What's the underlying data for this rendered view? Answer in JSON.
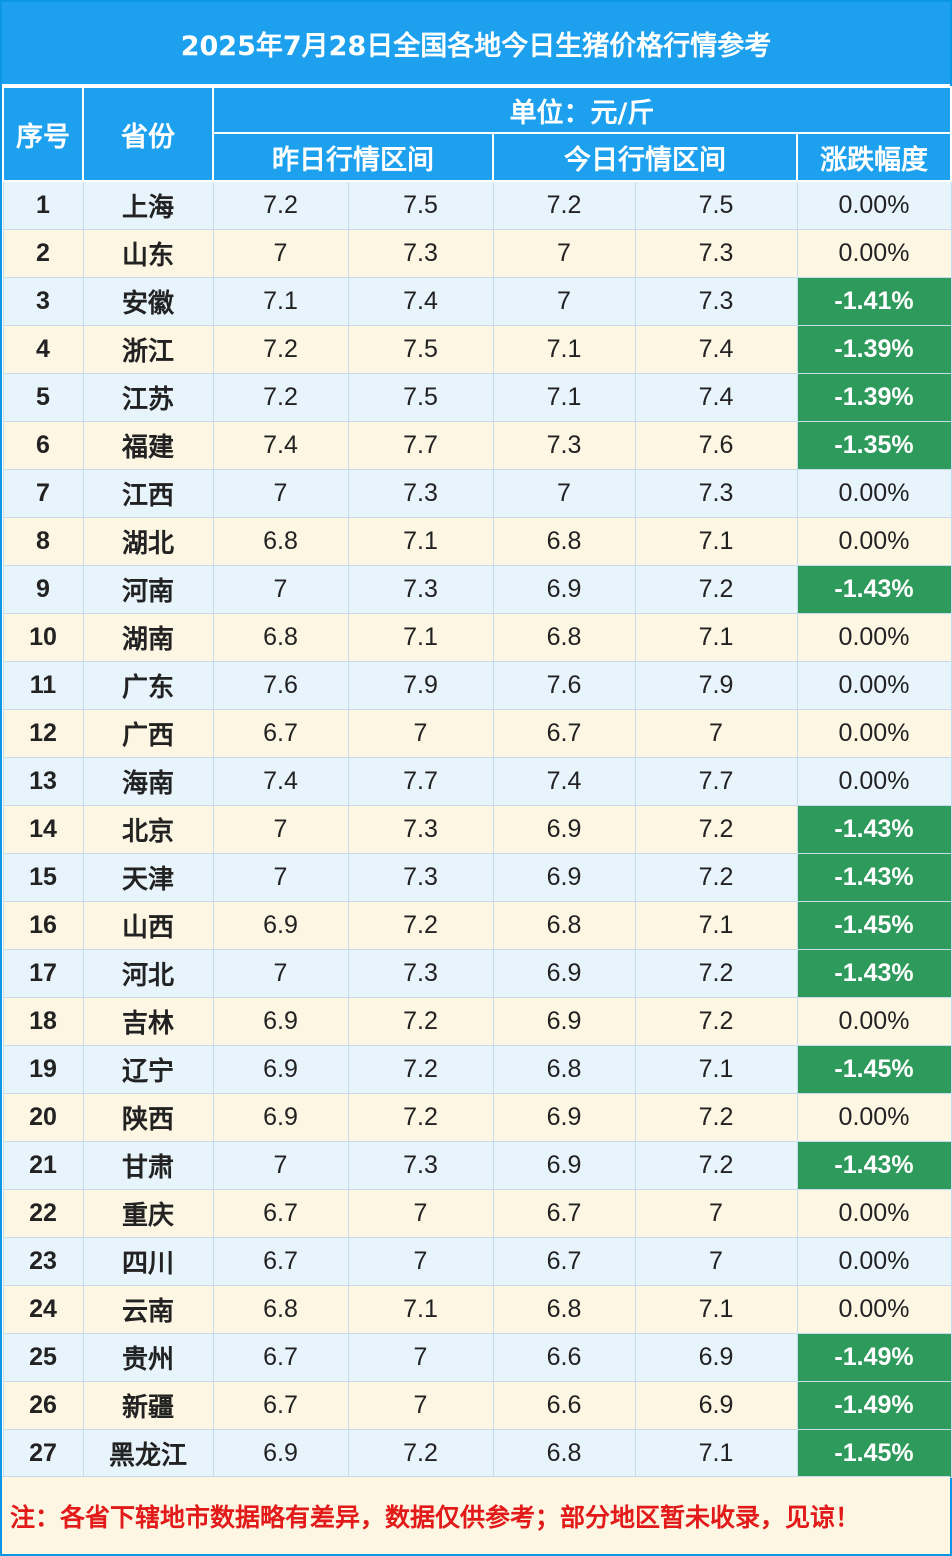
{
  "title": "2025年7月28日全国各地今日生猪价格行情参考",
  "header": {
    "seq": "序号",
    "province": "省份",
    "unit": "单位：元/斤",
    "yesterday": "昨日行情区间",
    "today": "今日行情区间",
    "change": "涨跌幅度"
  },
  "rows": [
    {
      "seq": "1",
      "province": "上海",
      "y_low": "7.2",
      "y_high": "7.5",
      "t_low": "7.2",
      "t_high": "7.5",
      "change": "0.00%"
    },
    {
      "seq": "2",
      "province": "山东",
      "y_low": "7",
      "y_high": "7.3",
      "t_low": "7",
      "t_high": "7.3",
      "change": "0.00%"
    },
    {
      "seq": "3",
      "province": "安徽",
      "y_low": "7.1",
      "y_high": "7.4",
      "t_low": "7",
      "t_high": "7.3",
      "change": "-1.41%"
    },
    {
      "seq": "4",
      "province": "浙江",
      "y_low": "7.2",
      "y_high": "7.5",
      "t_low": "7.1",
      "t_high": "7.4",
      "change": "-1.39%"
    },
    {
      "seq": "5",
      "province": "江苏",
      "y_low": "7.2",
      "y_high": "7.5",
      "t_low": "7.1",
      "t_high": "7.4",
      "change": "-1.39%"
    },
    {
      "seq": "6",
      "province": "福建",
      "y_low": "7.4",
      "y_high": "7.7",
      "t_low": "7.3",
      "t_high": "7.6",
      "change": "-1.35%"
    },
    {
      "seq": "7",
      "province": "江西",
      "y_low": "7",
      "y_high": "7.3",
      "t_low": "7",
      "t_high": "7.3",
      "change": "0.00%"
    },
    {
      "seq": "8",
      "province": "湖北",
      "y_low": "6.8",
      "y_high": "7.1",
      "t_low": "6.8",
      "t_high": "7.1",
      "change": "0.00%"
    },
    {
      "seq": "9",
      "province": "河南",
      "y_low": "7",
      "y_high": "7.3",
      "t_low": "6.9",
      "t_high": "7.2",
      "change": "-1.43%"
    },
    {
      "seq": "10",
      "province": "湖南",
      "y_low": "6.8",
      "y_high": "7.1",
      "t_low": "6.8",
      "t_high": "7.1",
      "change": "0.00%"
    },
    {
      "seq": "11",
      "province": "广东",
      "y_low": "7.6",
      "y_high": "7.9",
      "t_low": "7.6",
      "t_high": "7.9",
      "change": "0.00%"
    },
    {
      "seq": "12",
      "province": "广西",
      "y_low": "6.7",
      "y_high": "7",
      "t_low": "6.7",
      "t_high": "7",
      "change": "0.00%"
    },
    {
      "seq": "13",
      "province": "海南",
      "y_low": "7.4",
      "y_high": "7.7",
      "t_low": "7.4",
      "t_high": "7.7",
      "change": "0.00%"
    },
    {
      "seq": "14",
      "province": "北京",
      "y_low": "7",
      "y_high": "7.3",
      "t_low": "6.9",
      "t_high": "7.2",
      "change": "-1.43%"
    },
    {
      "seq": "15",
      "province": "天津",
      "y_low": "7",
      "y_high": "7.3",
      "t_low": "6.9",
      "t_high": "7.2",
      "change": "-1.43%"
    },
    {
      "seq": "16",
      "province": "山西",
      "y_low": "6.9",
      "y_high": "7.2",
      "t_low": "6.8",
      "t_high": "7.1",
      "change": "-1.45%"
    },
    {
      "seq": "17",
      "province": "河北",
      "y_low": "7",
      "y_high": "7.3",
      "t_low": "6.9",
      "t_high": "7.2",
      "change": "-1.43%"
    },
    {
      "seq": "18",
      "province": "吉林",
      "y_low": "6.9",
      "y_high": "7.2",
      "t_low": "6.9",
      "t_high": "7.2",
      "change": "0.00%"
    },
    {
      "seq": "19",
      "province": "辽宁",
      "y_low": "6.9",
      "y_high": "7.2",
      "t_low": "6.8",
      "t_high": "7.1",
      "change": "-1.45%"
    },
    {
      "seq": "20",
      "province": "陕西",
      "y_low": "6.9",
      "y_high": "7.2",
      "t_low": "6.9",
      "t_high": "7.2",
      "change": "0.00%"
    },
    {
      "seq": "21",
      "province": "甘肃",
      "y_low": "7",
      "y_high": "7.3",
      "t_low": "6.9",
      "t_high": "7.2",
      "change": "-1.43%"
    },
    {
      "seq": "22",
      "province": "重庆",
      "y_low": "6.7",
      "y_high": "7",
      "t_low": "6.7",
      "t_high": "7",
      "change": "0.00%"
    },
    {
      "seq": "23",
      "province": "四川",
      "y_low": "6.7",
      "y_high": "7",
      "t_low": "6.7",
      "t_high": "7",
      "change": "0.00%"
    },
    {
      "seq": "24",
      "province": "云南",
      "y_low": "6.8",
      "y_high": "7.1",
      "t_low": "6.8",
      "t_high": "7.1",
      "change": "0.00%"
    },
    {
      "seq": "25",
      "province": "贵州",
      "y_low": "6.7",
      "y_high": "7",
      "t_low": "6.6",
      "t_high": "6.9",
      "change": "-1.49%"
    },
    {
      "seq": "26",
      "province": "新疆",
      "y_low": "6.7",
      "y_high": "7",
      "t_low": "6.6",
      "t_high": "6.9",
      "change": "-1.49%"
    },
    {
      "seq": "27",
      "province": "黑龙江",
      "y_low": "6.9",
      "y_high": "7.2",
      "t_low": "6.8",
      "t_high": "7.1",
      "change": "-1.45%"
    }
  ],
  "note": "注：各省下辖地市数据略有差异，数据仅供参考；部分地区暂未收录，见谅！",
  "colors": {
    "header_blue": "#1da1ee",
    "row_blue": "#e8f4fc",
    "row_cream": "#fdf6e3",
    "drop_green": "#2e9a5c",
    "note_red": "#e21a1a"
  }
}
